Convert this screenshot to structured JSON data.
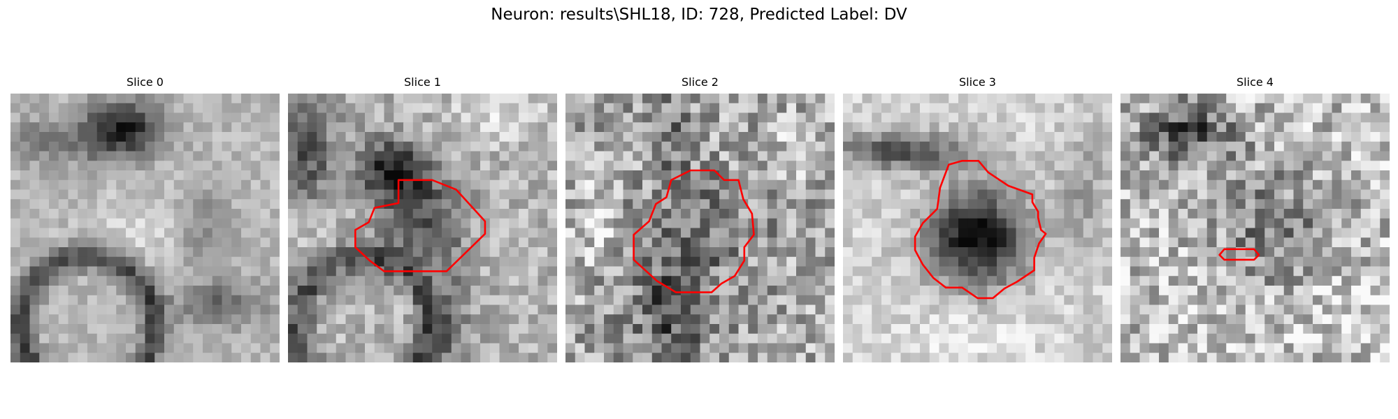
{
  "figure": {
    "title": "Neuron: results\\SHL18, ID: 728, Predicted Label: DV",
    "contour_color": "#ff0000"
  },
  "panels": [
    {
      "title": "Slice 0"
    },
    {
      "title": "Slice 1"
    },
    {
      "title": "Slice 2"
    },
    {
      "title": "Slice 3"
    },
    {
      "title": "Slice 4"
    }
  ]
}
